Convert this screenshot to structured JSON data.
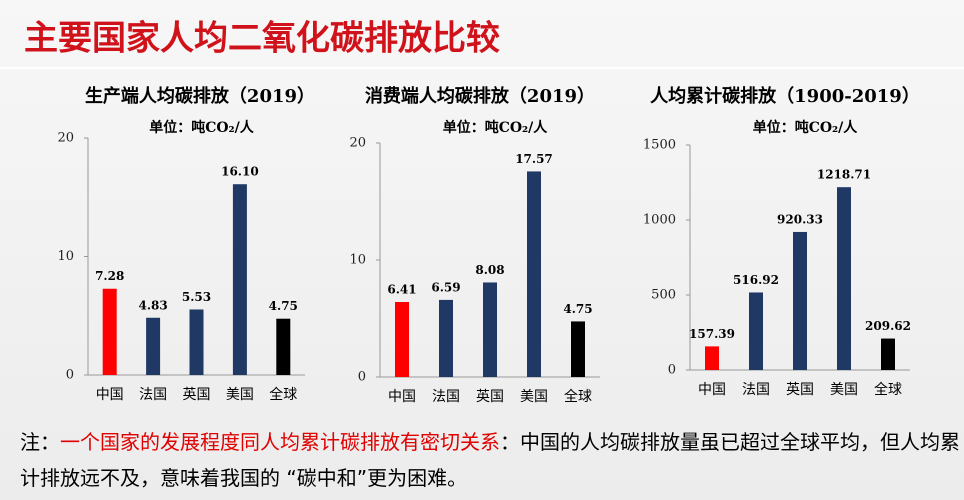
{
  "title": "主要国家人均二氧化碳排放比较",
  "note": {
    "prefix": "注：",
    "highlight": "一个国家的发展程度同人均累计碳排放有密切关系",
    "text": "：中国的人均碳排放量虽已超过全球平均，但人均累计排放远不及，意味着我国的 “碳中和”更为困难。"
  },
  "chart_data": [
    {
      "type": "bar",
      "title": "生产端人均碳排放（2019）",
      "subtitle": "单位：吨CO₂/人",
      "categories": [
        "中国",
        "法国",
        "英国",
        "美国",
        "全球"
      ],
      "values": [
        7.28,
        4.83,
        5.53,
        16.1,
        4.75
      ],
      "value_labels": [
        "7.28",
        "4.83",
        "5.53",
        "16.10",
        "4.75"
      ],
      "colors": [
        "#ff0000",
        "#1f3864",
        "#1f3864",
        "#1f3864",
        "#000000"
      ],
      "ylim": [
        0,
        20
      ],
      "yticks": [
        0,
        10,
        20
      ]
    },
    {
      "type": "bar",
      "title": "消费端人均碳排放（2019）",
      "subtitle": "单位：吨CO₂/人",
      "categories": [
        "中国",
        "法国",
        "英国",
        "美国",
        "全球"
      ],
      "values": [
        6.41,
        6.59,
        8.08,
        17.57,
        4.75
      ],
      "value_labels": [
        "6.41",
        "6.59",
        "8.08",
        "17.57",
        "4.75"
      ],
      "colors": [
        "#ff0000",
        "#1f3864",
        "#1f3864",
        "#1f3864",
        "#000000"
      ],
      "ylim": [
        0,
        20
      ],
      "yticks": [
        0,
        10,
        20
      ]
    },
    {
      "type": "bar",
      "title": "人均累计碳排放（1900-2019）",
      "subtitle": "单位：吨CO₂/人",
      "categories": [
        "中国",
        "法国",
        "英国",
        "美国",
        "全球"
      ],
      "values": [
        157.39,
        516.92,
        920.33,
        1218.71,
        209.62
      ],
      "value_labels": [
        "157.39",
        "516.92",
        "920.33",
        "1218.71",
        "209.62"
      ],
      "colors": [
        "#ff0000",
        "#1f3864",
        "#1f3864",
        "#1f3864",
        "#000000"
      ],
      "ylim": [
        0,
        1500
      ],
      "yticks": [
        0,
        500,
        1000,
        1500
      ]
    }
  ]
}
